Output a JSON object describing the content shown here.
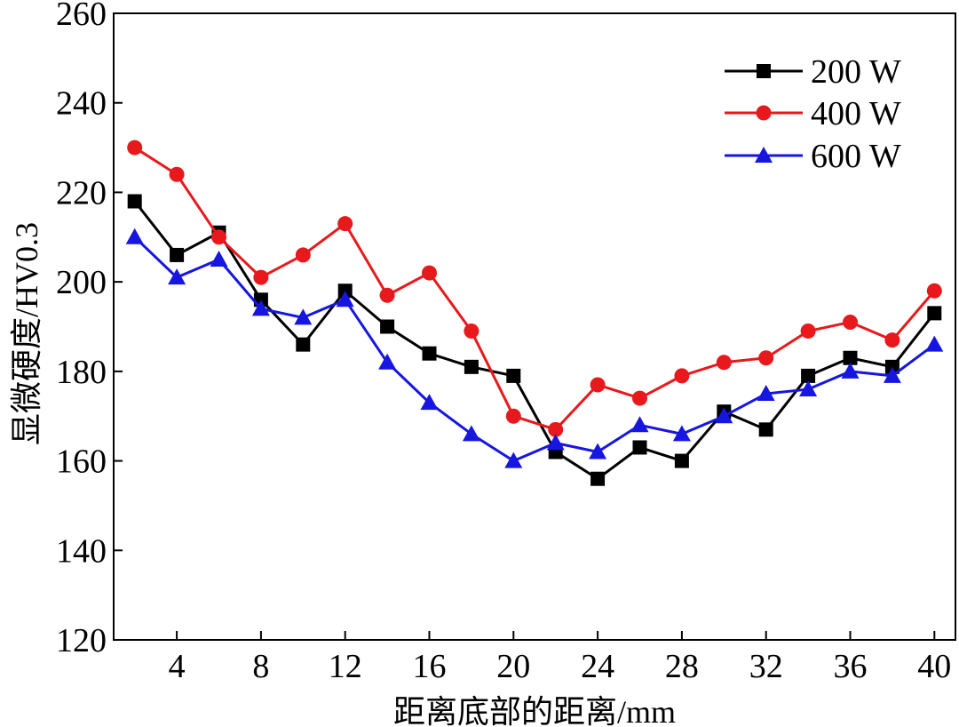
{
  "chart_data": {
    "type": "line",
    "title": "",
    "xlabel": "距离底部的距离/mm",
    "ylabel": "显微硬度/HV0.3",
    "xlim": [
      1,
      41
    ],
    "ylim": [
      120,
      260
    ],
    "x_ticks": [
      4,
      8,
      12,
      16,
      20,
      24,
      28,
      32,
      36,
      40
    ],
    "y_ticks": [
      120,
      140,
      160,
      180,
      200,
      220,
      240,
      260
    ],
    "grid": false,
    "legend_position": "top-right",
    "x": [
      2,
      4,
      6,
      8,
      10,
      12,
      14,
      16,
      18,
      20,
      22,
      24,
      26,
      28,
      30,
      32,
      34,
      36,
      38,
      40
    ],
    "series": [
      {
        "name": "200 W",
        "color": "#000000",
        "marker": "square",
        "values": [
          218,
          206,
          211,
          196,
          186,
          198,
          190,
          184,
          181,
          179,
          162,
          156,
          163,
          160,
          171,
          167,
          179,
          183,
          181,
          193
        ]
      },
      {
        "name": "400 W",
        "color": "#e8191c",
        "marker": "circle",
        "values": [
          230,
          224,
          210,
          201,
          206,
          213,
          197,
          202,
          189,
          170,
          167,
          177,
          174,
          179,
          182,
          183,
          189,
          191,
          187,
          198
        ]
      },
      {
        "name": "600 W",
        "color": "#1616e0",
        "marker": "triangle",
        "values": [
          210,
          201,
          205,
          194,
          192,
          196,
          182,
          173,
          166,
          160,
          164,
          162,
          168,
          166,
          170,
          175,
          176,
          180,
          179,
          186
        ]
      }
    ]
  }
}
